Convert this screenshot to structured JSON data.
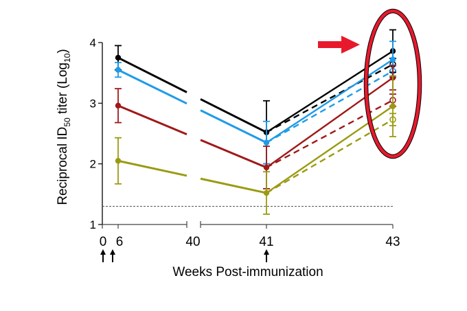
{
  "chart_data": {
    "type": "line",
    "title": "",
    "xlabel": "Weeks Post-immunization",
    "ylabel": "Reciprocal ID50 titer (Log10)",
    "ylabel_parts": {
      "pre": "Reciprocal ID",
      "sub": "50",
      "mid": " titer (Log",
      "sub2": "10",
      "post": ")"
    },
    "ylim": [
      1,
      4
    ],
    "yticks": [
      "1",
      "2",
      "3",
      "4"
    ],
    "x_categories": [
      "0",
      "6",
      "40",
      "41",
      "43"
    ],
    "x_axis_break": "between 6 and 40",
    "immunization_arrows_at": [
      "0",
      "6",
      "41"
    ],
    "detection_limit": 1.3,
    "grid": false,
    "legend": "none",
    "annotation": {
      "arrow_color": "#e8192c",
      "ellipse_color": "#e8192c",
      "highlights_week": "43"
    },
    "series": [
      {
        "name": "black-solid",
        "color": "#000000",
        "style": "solid",
        "marker": "filled",
        "points": [
          {
            "x": "6",
            "y": 3.75,
            "err": 0.2
          },
          {
            "x": "41",
            "y": 2.52,
            "err": 0.52
          },
          {
            "x": "43",
            "y": 3.86,
            "err": 0.35
          }
        ]
      },
      {
        "name": "blue-solid",
        "color": "#1e9be8",
        "style": "solid",
        "marker": "filled",
        "points": [
          {
            "x": "6",
            "y": 3.55,
            "err": 0.12
          },
          {
            "x": "41",
            "y": 2.35,
            "err": 0.35
          },
          {
            "x": "43",
            "y": 3.72,
            "err": 0.3
          }
        ]
      },
      {
        "name": "red-solid",
        "color": "#a01818",
        "style": "solid",
        "marker": "filled",
        "points": [
          {
            "x": "6",
            "y": 2.96,
            "err": 0.28
          },
          {
            "x": "41",
            "y": 1.94,
            "err": 0.35
          },
          {
            "x": "43",
            "y": 3.42,
            "err": 0.2
          }
        ]
      },
      {
        "name": "olive-solid",
        "color": "#9a9a12",
        "style": "solid",
        "marker": "filled",
        "points": [
          {
            "x": "6",
            "y": 2.05,
            "err": 0.38
          },
          {
            "x": "41",
            "y": 1.52,
            "err": 0.35
          },
          {
            "x": "43",
            "y": 2.95,
            "err": 0.5
          }
        ]
      },
      {
        "name": "black-dashed",
        "color": "#000000",
        "style": "dashed",
        "marker": "open",
        "points": [
          {
            "x": "41",
            "y": 2.52
          },
          {
            "x": "43",
            "y": 3.64,
            "err": 0.1
          }
        ]
      },
      {
        "name": "blue-dashed",
        "color": "#1e9be8",
        "style": "dashed",
        "marker": "open",
        "points": [
          {
            "x": "41",
            "y": 2.35
          },
          {
            "x": "43",
            "y": 3.53,
            "err": 0.1
          }
        ]
      },
      {
        "name": "red-dashed",
        "color": "#a01818",
        "style": "dashed",
        "marker": "open",
        "points": [
          {
            "x": "41",
            "y": 1.94
          },
          {
            "x": "43",
            "y": 3.05,
            "err": 0.1
          }
        ]
      },
      {
        "name": "olive-dashed",
        "color": "#9a9a12",
        "style": "dashed",
        "marker": "open",
        "points": [
          {
            "x": "41",
            "y": 1.52
          },
          {
            "x": "43",
            "y": 2.73,
            "err": 0.1
          }
        ]
      }
    ]
  }
}
